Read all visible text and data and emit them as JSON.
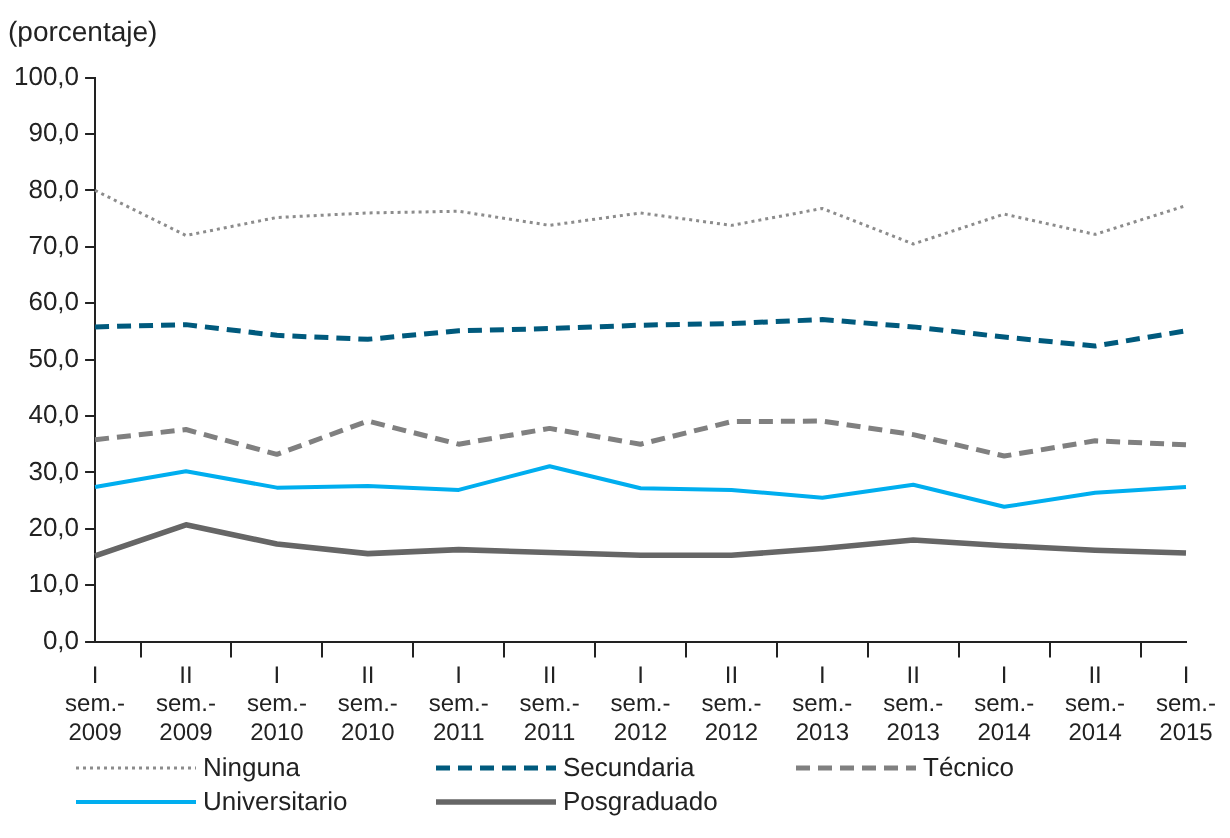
{
  "chart_data": {
    "type": "line",
    "ylabel": "(porcentaje)",
    "categories": [
      "I\nsem.-\n2009",
      "II\nsem.-\n2009",
      "I\nsem.-\n2010",
      "II\nsem.-\n2010",
      "I\nsem.-\n2011",
      "II\nsem.-\n2011",
      "I\nsem.-\n2012",
      "II\nsem.-\n2012",
      "I\nsem.-\n2013",
      "II\nsem.-\n2013",
      "I\nsem.-\n2014",
      "II\nsem.-\n2014",
      "I\nsem.-\n2015"
    ],
    "series": [
      {
        "name": "Ninguna",
        "color": "#8c8c8c",
        "line_style": "dotted",
        "values": [
          80,
          72,
          75.2,
          76,
          76.3,
          73.8,
          76,
          73.8,
          76.8,
          70.5,
          75.8,
          72.2,
          77.3
        ]
      },
      {
        "name": "Secundaria",
        "color": "#005a7d",
        "line_style": "dashed",
        "values": [
          55.8,
          56.2,
          54.3,
          53.6,
          55.1,
          55.5,
          56.1,
          56.4,
          57.1,
          55.8,
          54,
          52.4,
          55.1
        ]
      },
      {
        "name": "Técnico",
        "color": "#808080",
        "line_style": "dashed",
        "values": [
          35.8,
          37.6,
          33.2,
          39.1,
          35,
          37.8,
          35,
          39,
          39.1,
          36.7,
          32.9,
          35.6,
          34.9
        ]
      },
      {
        "name": "Universitario",
        "color": "#00aeef",
        "line_style": "solid",
        "values": [
          27.4,
          30.2,
          27.3,
          27.6,
          26.9,
          31.1,
          27.2,
          26.9,
          25.5,
          27.8,
          23.9,
          26.4,
          27.4
        ]
      },
      {
        "name": "Posgraduado",
        "color": "#666666",
        "line_style": "solid",
        "values": [
          15.2,
          20.7,
          17.3,
          15.6,
          16.3,
          15.8,
          15.3,
          15.3,
          16.5,
          18,
          17,
          16.2,
          15.7
        ]
      }
    ],
    "ylim": [
      0,
      100
    ],
    "yticks": [
      {
        "value": 0,
        "label": "0,0"
      },
      {
        "value": 10,
        "label": "10,0"
      },
      {
        "value": 20,
        "label": "20,0"
      },
      {
        "value": 30,
        "label": "30,0"
      },
      {
        "value": 40,
        "label": "40,0"
      },
      {
        "value": 50,
        "label": "50,0"
      },
      {
        "value": 60,
        "label": "60,0"
      },
      {
        "value": 70,
        "label": "70,0"
      },
      {
        "value": 80,
        "label": "80,0"
      },
      {
        "value": 90,
        "label": "90,0"
      },
      {
        "value": 100,
        "label": "100,0"
      }
    ],
    "grid": false,
    "legend": "bottom",
    "marker": "none"
  }
}
